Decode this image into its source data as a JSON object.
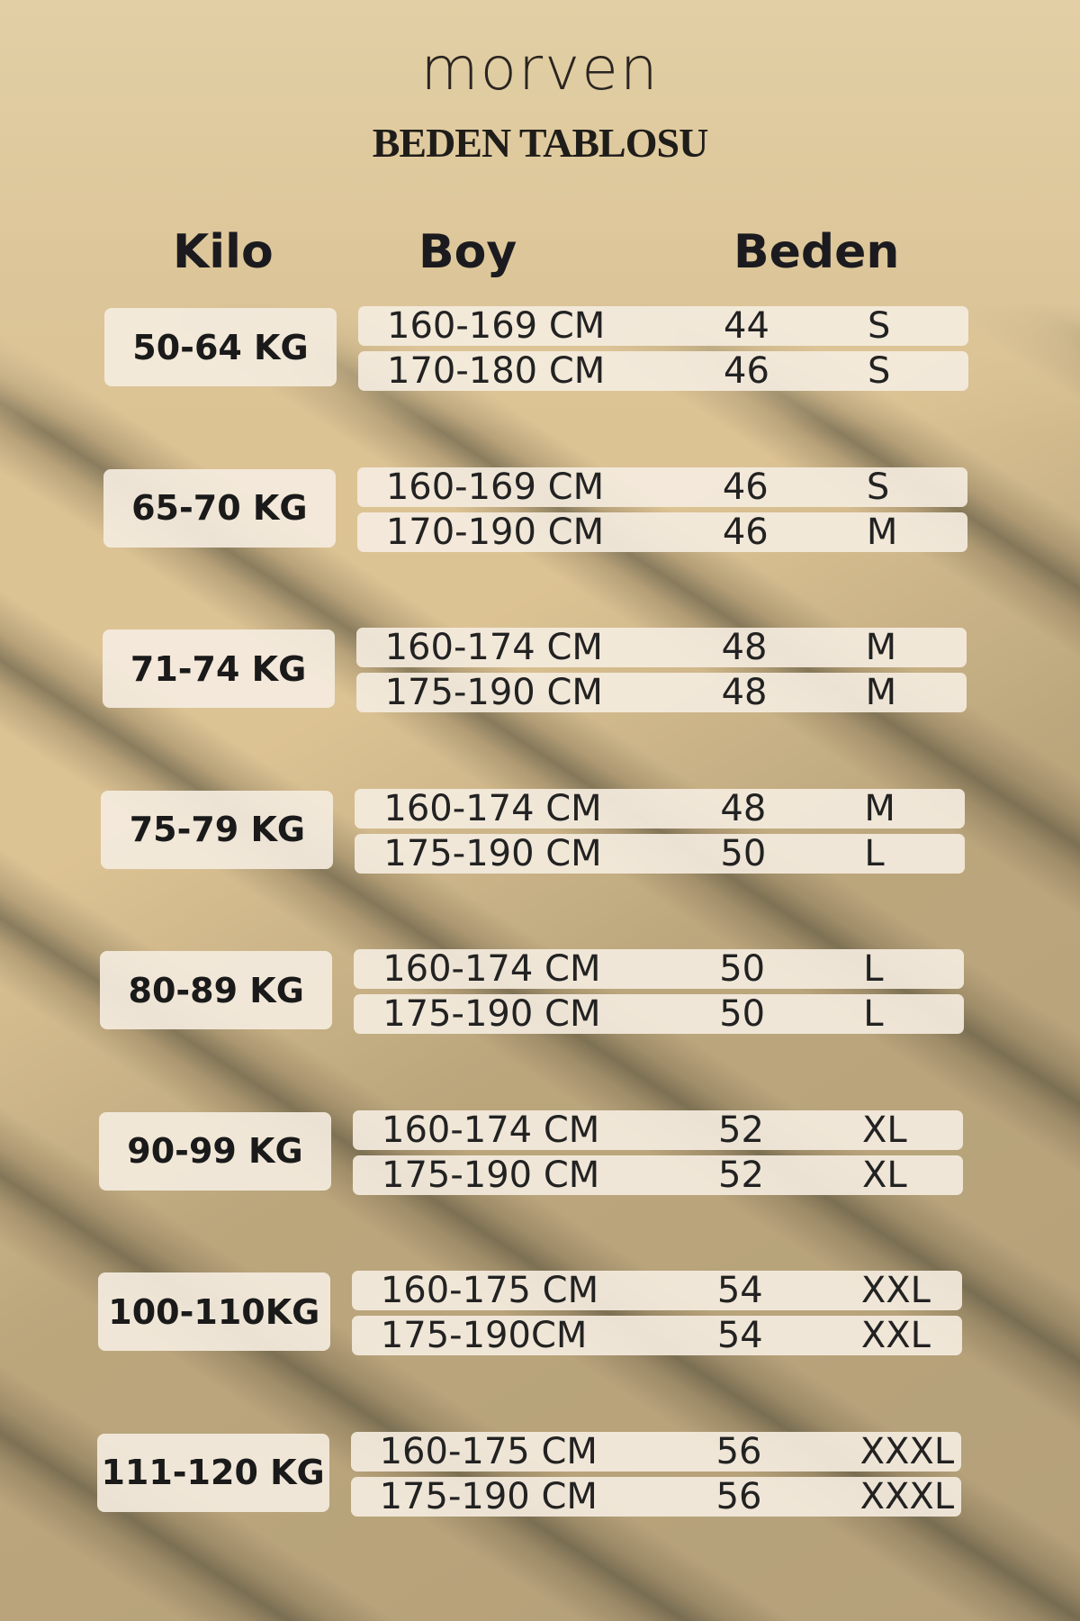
{
  "brand": "morven",
  "title": "BEDEN TABLOSU",
  "headers": {
    "kilo": "Kilo",
    "boy": "Boy",
    "beden": "Beden"
  },
  "groups": [
    {
      "kilo": "50-64 KG",
      "rows": [
        {
          "boy": "160-169 CM",
          "number": "44",
          "size": "S"
        },
        {
          "boy": "170-180 CM",
          "number": "46",
          "size": "S"
        }
      ]
    },
    {
      "kilo": "65-70 KG",
      "rows": [
        {
          "boy": "160-169 CM",
          "number": "46",
          "size": "S"
        },
        {
          "boy": "170-190 CM",
          "number": "46",
          "size": "M"
        }
      ]
    },
    {
      "kilo": "71-74 KG",
      "rows": [
        {
          "boy": "160-174 CM",
          "number": "48",
          "size": "M"
        },
        {
          "boy": "175-190 CM",
          "number": "48",
          "size": "M"
        }
      ]
    },
    {
      "kilo": "75-79 KG",
      "rows": [
        {
          "boy": "160-174 CM",
          "number": "48",
          "size": "M"
        },
        {
          "boy": "175-190 CM",
          "number": "50",
          "size": "L"
        }
      ]
    },
    {
      "kilo": "80-89 KG",
      "rows": [
        {
          "boy": "160-174 CM",
          "number": "50",
          "size": "L"
        },
        {
          "boy": "175-190 CM",
          "number": "50",
          "size": "L"
        }
      ]
    },
    {
      "kilo": "90-99 KG",
      "rows": [
        {
          "boy": "160-174 CM",
          "number": "52",
          "size": "XL"
        },
        {
          "boy": "175-190 CM",
          "number": "52",
          "size": "XL"
        }
      ]
    },
    {
      "kilo": "100-110KG",
      "rows": [
        {
          "boy": "160-175 CM",
          "number": "54",
          "size": "XXL"
        },
        {
          "boy": "175-190CM",
          "number": "54",
          "size": "XXL"
        }
      ]
    },
    {
      "kilo": "111-120 KG",
      "rows": [
        {
          "boy": "160-175 CM",
          "number": "56",
          "size": "XXXL"
        },
        {
          "boy": "175-190 CM",
          "number": "56",
          "size": "XXXL"
        }
      ]
    }
  ]
}
